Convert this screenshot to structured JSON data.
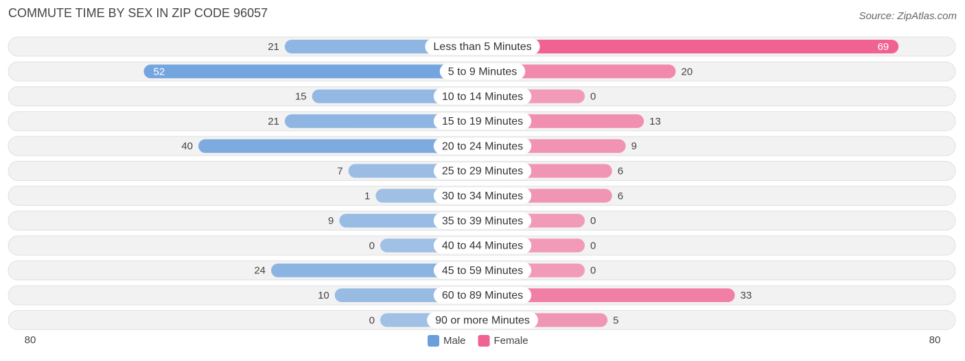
{
  "chart_data": {
    "type": "diverging_bar",
    "title": "COMMUTE TIME BY SEX IN ZIP CODE 96057",
    "source": "Source: ZipAtlas.com",
    "categories": [
      "Less than 5 Minutes",
      "5 to 9 Minutes",
      "10 to 14 Minutes",
      "15 to 19 Minutes",
      "20 to 24 Minutes",
      "25 to 29 Minutes",
      "30 to 34 Minutes",
      "35 to 39 Minutes",
      "40 to 44 Minutes",
      "45 to 59 Minutes",
      "60 to 89 Minutes",
      "90 or more Minutes"
    ],
    "series": [
      {
        "name": "Male",
        "color": "#6a9fdc",
        "values": [
          21,
          52,
          15,
          21,
          40,
          7,
          1,
          9,
          0,
          24,
          10,
          0
        ]
      },
      {
        "name": "Female",
        "color": "#f06292",
        "values": [
          69,
          20,
          0,
          13,
          9,
          6,
          6,
          0,
          0,
          0,
          33,
          5
        ]
      }
    ],
    "xlim": [
      0,
      80
    ],
    "xticks": [
      80
    ]
  }
}
